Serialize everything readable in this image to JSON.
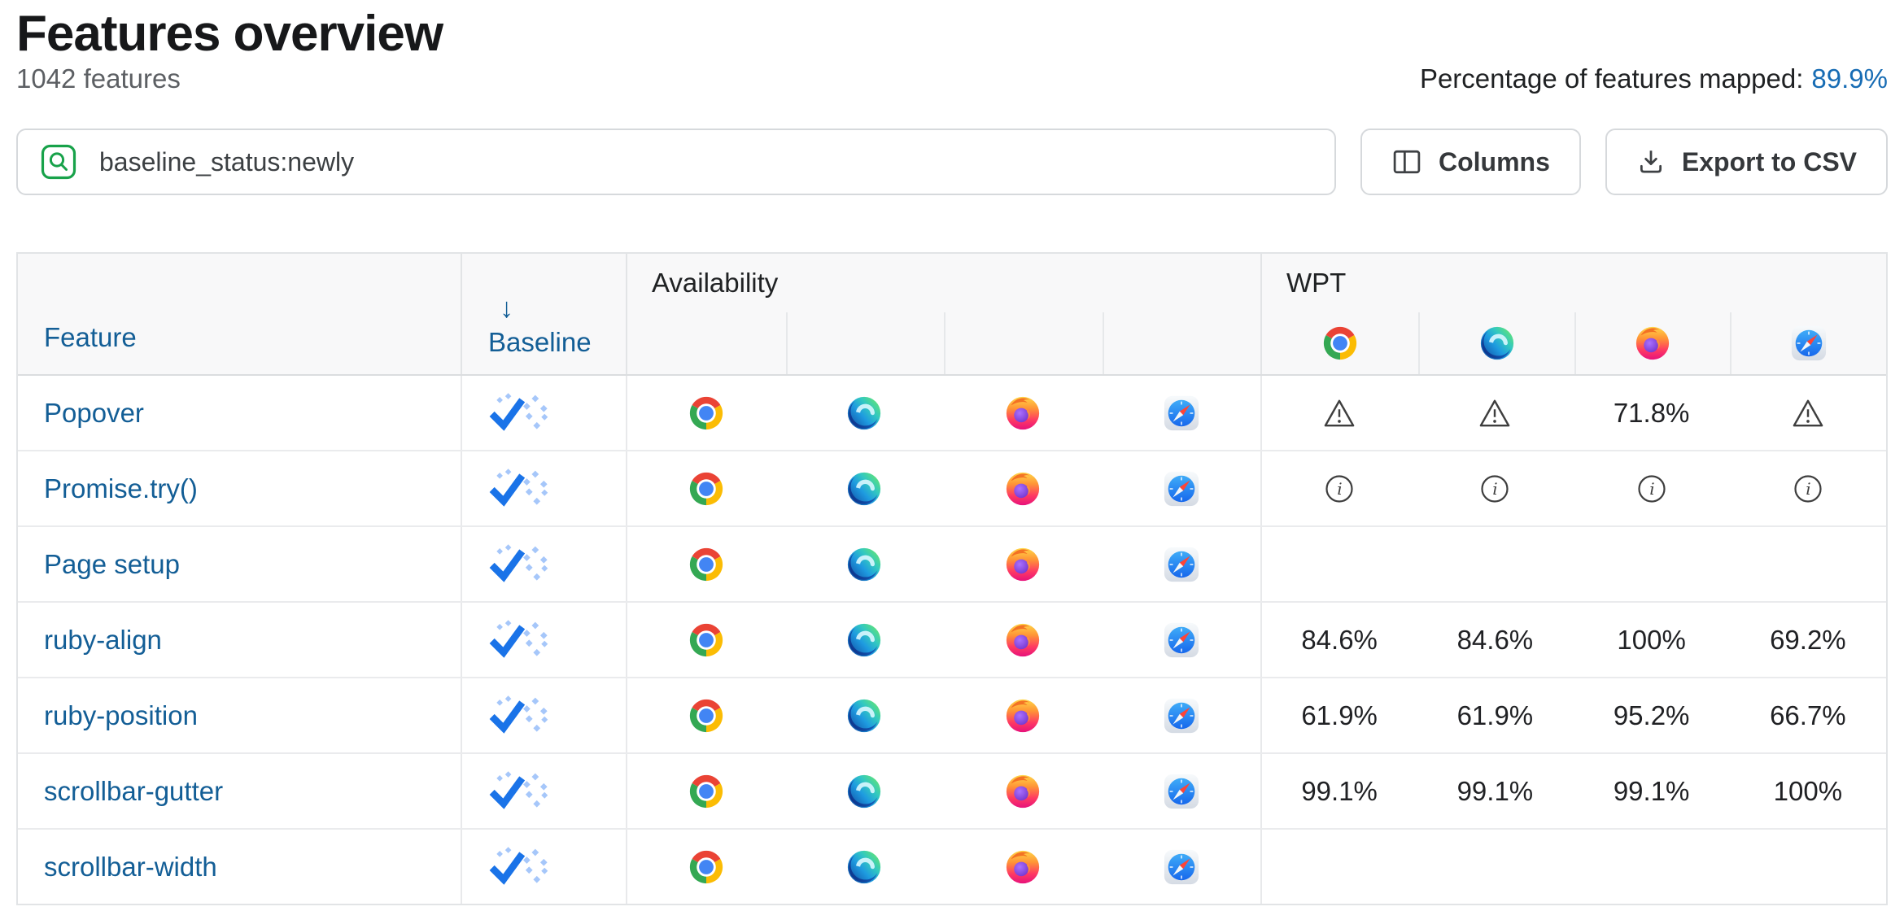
{
  "page": {
    "title": "Features overview",
    "subtitle": "1042 features",
    "mapped_label": "Percentage of features mapped:",
    "mapped_value": "89.9%"
  },
  "toolbar": {
    "search_value": "baseline_status:newly",
    "columns_label": "Columns",
    "export_label": "Export to CSV"
  },
  "table": {
    "feature_header": "Feature",
    "baseline_header": "Baseline",
    "sort_icon": "↓",
    "availability_header": "Availability",
    "wpt_header": "WPT",
    "browsers": [
      "chrome",
      "edge",
      "firefox",
      "safari"
    ],
    "rows": [
      {
        "feature": "Popover",
        "baseline": "newly",
        "availability": [
          "chrome",
          "edge",
          "firefox",
          "safari"
        ],
        "wpt": [
          {
            "type": "warning"
          },
          {
            "type": "warning"
          },
          {
            "type": "score",
            "value": "71.8%"
          },
          {
            "type": "warning"
          }
        ]
      },
      {
        "feature": "Promise.try()",
        "baseline": "newly",
        "availability": [
          "chrome",
          "edge",
          "firefox",
          "safari"
        ],
        "wpt": [
          {
            "type": "info"
          },
          {
            "type": "info"
          },
          {
            "type": "info"
          },
          {
            "type": "info"
          }
        ]
      },
      {
        "feature": "Page setup",
        "baseline": "newly",
        "availability": [
          "chrome",
          "edge",
          "firefox",
          "safari"
        ],
        "wpt": [
          {
            "type": "empty"
          },
          {
            "type": "empty"
          },
          {
            "type": "empty"
          },
          {
            "type": "empty"
          }
        ]
      },
      {
        "feature": "ruby-align",
        "baseline": "newly",
        "availability": [
          "chrome",
          "edge",
          "firefox",
          "safari"
        ],
        "wpt": [
          {
            "type": "score",
            "value": "84.6%"
          },
          {
            "type": "score",
            "value": "84.6%"
          },
          {
            "type": "score",
            "value": "100%"
          },
          {
            "type": "score",
            "value": "69.2%"
          }
        ]
      },
      {
        "feature": "ruby-position",
        "baseline": "newly",
        "availability": [
          "chrome",
          "edge",
          "firefox",
          "safari"
        ],
        "wpt": [
          {
            "type": "score",
            "value": "61.9%"
          },
          {
            "type": "score",
            "value": "61.9%"
          },
          {
            "type": "score",
            "value": "95.2%"
          },
          {
            "type": "score",
            "value": "66.7%"
          }
        ]
      },
      {
        "feature": "scrollbar-gutter",
        "baseline": "newly",
        "availability": [
          "chrome",
          "edge",
          "firefox",
          "safari"
        ],
        "wpt": [
          {
            "type": "score",
            "value": "99.1%"
          },
          {
            "type": "score",
            "value": "99.1%"
          },
          {
            "type": "score",
            "value": "99.1%"
          },
          {
            "type": "score",
            "value": "100%"
          }
        ]
      },
      {
        "feature": "scrollbar-width",
        "baseline": "newly",
        "availability": [
          "chrome",
          "edge",
          "firefox",
          "safari"
        ],
        "wpt": [
          {
            "type": "empty"
          },
          {
            "type": "empty"
          },
          {
            "type": "empty"
          },
          {
            "type": "empty"
          }
        ]
      }
    ]
  },
  "colors": {
    "link_blue": "#135e96",
    "baseline_blue": "#1a73e8",
    "baseline_dot_blue": "#a6c7fa",
    "search_green": "#18a24a",
    "icon_gray": "#3e3e3e"
  }
}
